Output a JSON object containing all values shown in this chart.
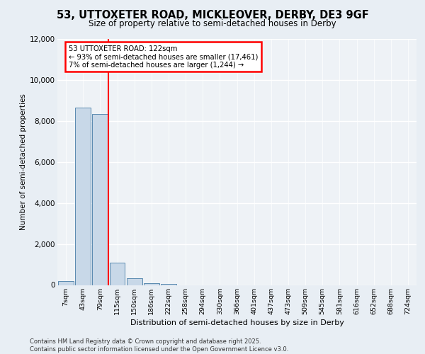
{
  "title_line1": "53, UTTOXETER ROAD, MICKLEOVER, DERBY, DE3 9GF",
  "title_line2": "Size of property relative to semi-detached houses in Derby",
  "xlabel": "Distribution of semi-detached houses by size in Derby",
  "ylabel": "Number of semi-detached properties",
  "footer_line1": "Contains HM Land Registry data © Crown copyright and database right 2025.",
  "footer_line2": "Contains public sector information licensed under the Open Government Licence v3.0.",
  "categories": [
    "7sqm",
    "43sqm",
    "79sqm",
    "115sqm",
    "150sqm",
    "186sqm",
    "222sqm",
    "258sqm",
    "294sqm",
    "330sqm",
    "366sqm",
    "401sqm",
    "437sqm",
    "473sqm",
    "509sqm",
    "545sqm",
    "581sqm",
    "616sqm",
    "652sqm",
    "688sqm",
    "724sqm"
  ],
  "values": [
    200,
    8650,
    8350,
    1100,
    330,
    100,
    50,
    0,
    0,
    0,
    0,
    0,
    0,
    0,
    0,
    0,
    0,
    0,
    0,
    0,
    0
  ],
  "bar_color": "#c8d8e8",
  "bar_edge_color": "#5a8ab0",
  "vline_color": "red",
  "vline_x_index": 2,
  "annotation_title": "53 UTTOXETER ROAD: 122sqm",
  "annotation_line2": "← 93% of semi-detached houses are smaller (17,461)",
  "annotation_line3": "7% of semi-detached houses are larger (1,244) →",
  "annotation_box_color": "white",
  "annotation_box_edge_color": "red",
  "ylim": [
    0,
    12000
  ],
  "yticks": [
    0,
    2000,
    4000,
    6000,
    8000,
    10000,
    12000
  ],
  "background_color": "#e8eef4",
  "plot_bg_color": "#eef2f6",
  "grid_color": "white"
}
